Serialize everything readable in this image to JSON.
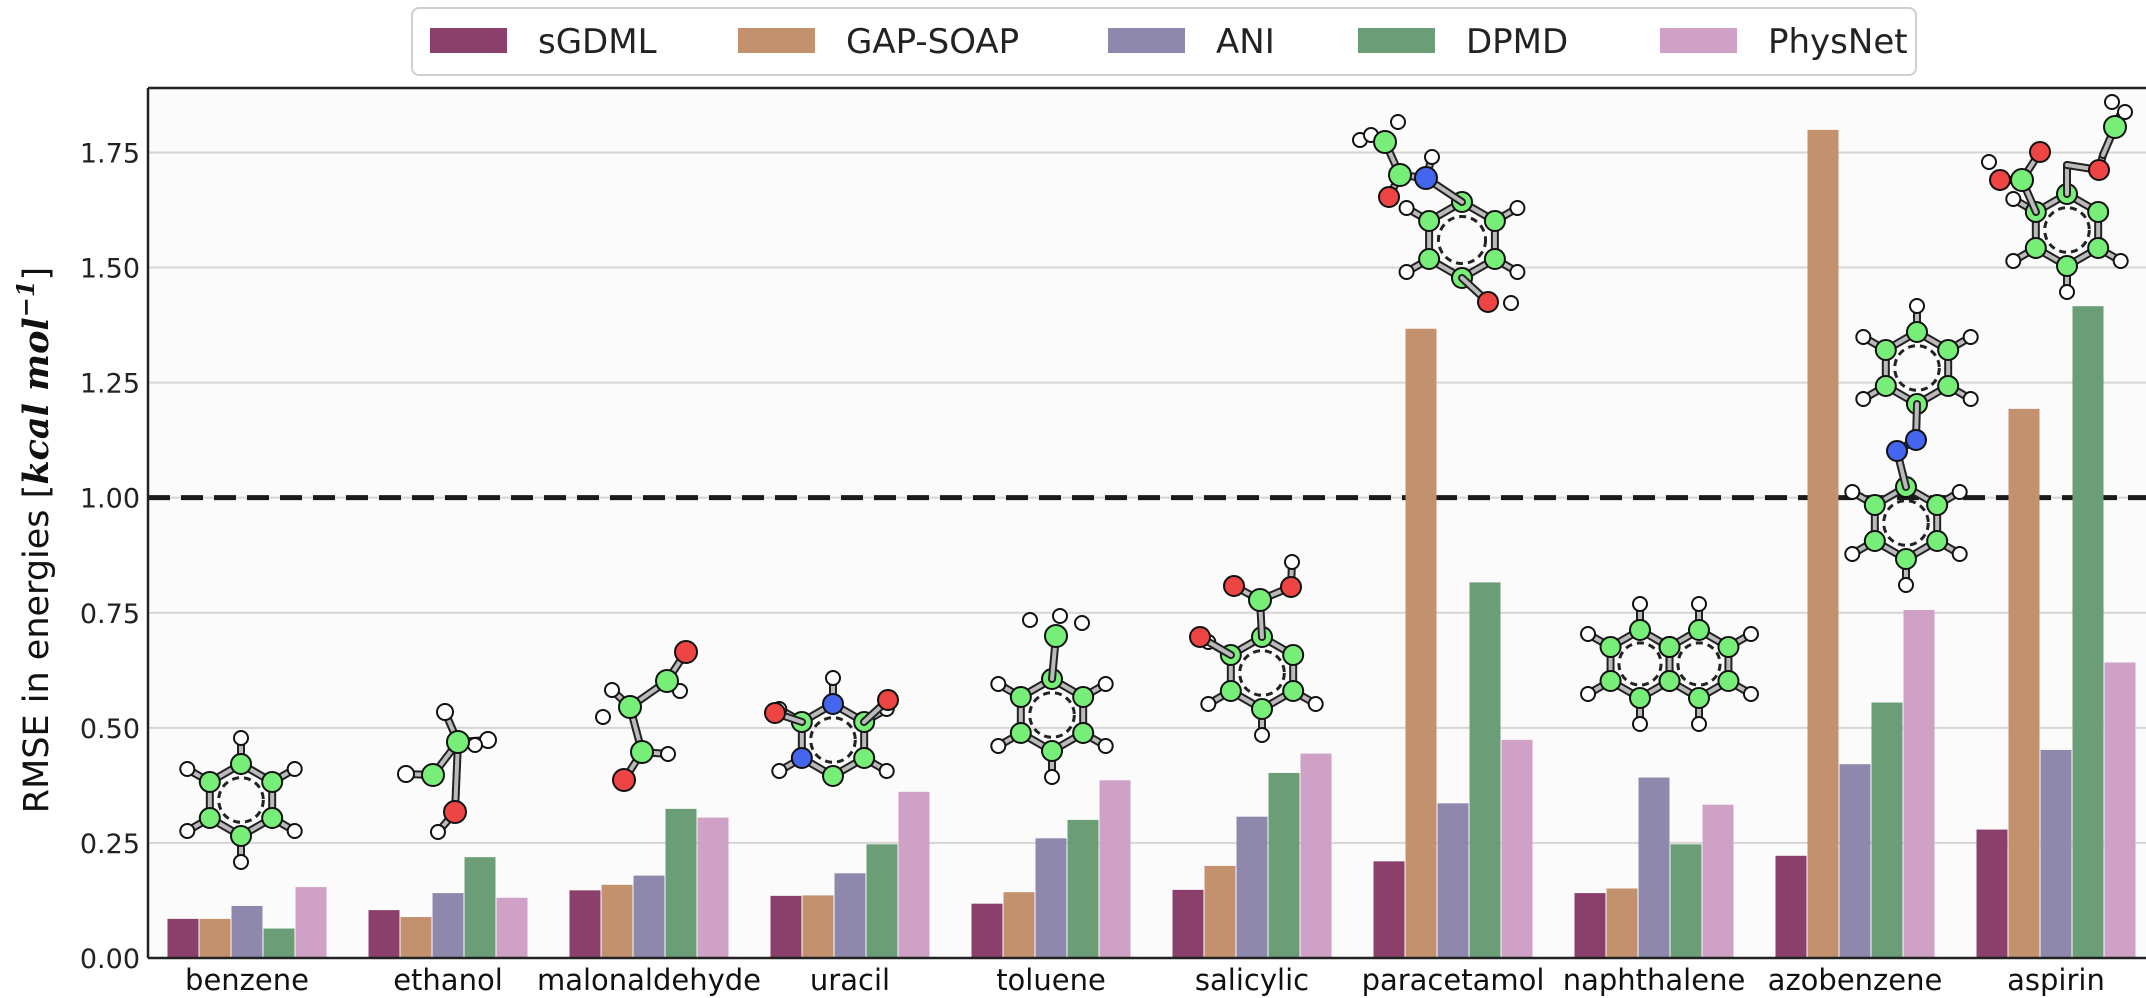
{
  "chart_data": {
    "type": "bar",
    "categories": [
      "benzene",
      "ethanol",
      "malonaldehyde",
      "uracil",
      "toluene",
      "salicylic",
      "paracetamol",
      "naphthalene",
      "azobenzene",
      "aspirin"
    ],
    "series": [
      {
        "name": "sGDML",
        "color": "#8b3f6b",
        "values": [
          0.085,
          0.104,
          0.147,
          0.135,
          0.118,
          0.148,
          0.21,
          0.141,
          0.222,
          0.279
        ]
      },
      {
        "name": "GAP-SOAP",
        "color": "#c4916e",
        "values": [
          0.085,
          0.089,
          0.159,
          0.136,
          0.143,
          0.2,
          1.367,
          0.151,
          1.799,
          1.193
        ]
      },
      {
        "name": "ANI",
        "color": "#8e88ad",
        "values": [
          0.113,
          0.141,
          0.179,
          0.184,
          0.26,
          0.307,
          0.336,
          0.392,
          0.421,
          0.452
        ]
      },
      {
        "name": "DPMD",
        "color": "#6b9d77",
        "values": [
          0.064,
          0.219,
          0.324,
          0.247,
          0.3,
          0.402,
          0.816,
          0.247,
          0.555,
          1.416
        ]
      },
      {
        "name": "PhysNet",
        "color": "#d0a1c6",
        "values": [
          0.154,
          0.131,
          0.305,
          0.361,
          0.386,
          0.444,
          0.474,
          0.333,
          0.756,
          0.642
        ]
      }
    ],
    "ylabel": "RMSE in energies [kcal mol⁻¹]",
    "ylabel_plain": "RMSE in energies [",
    "ylabel_units": "kcal mol",
    "ylabel_exp": "−1",
    "ylabel_close": "]",
    "ylim": [
      0,
      1.89
    ],
    "yticks": [
      "0.00",
      "0.25",
      "0.50",
      "0.75",
      "1.00",
      "1.25",
      "1.50",
      "1.75"
    ],
    "ytick_values": [
      0,
      0.25,
      0.5,
      0.75,
      1.0,
      1.25,
      1.5,
      1.75
    ],
    "reference_line": 1.0,
    "grid": true,
    "legend_position": "top-center"
  },
  "molecule_icons": [
    "benzene-molecule",
    "ethanol-molecule",
    "malonaldehyde-molecule",
    "uracil-molecule",
    "toluene-molecule",
    "salicylic-molecule",
    "paracetamol-molecule",
    "naphthalene-molecule",
    "azobenzene-molecule",
    "aspirin-molecule"
  ]
}
